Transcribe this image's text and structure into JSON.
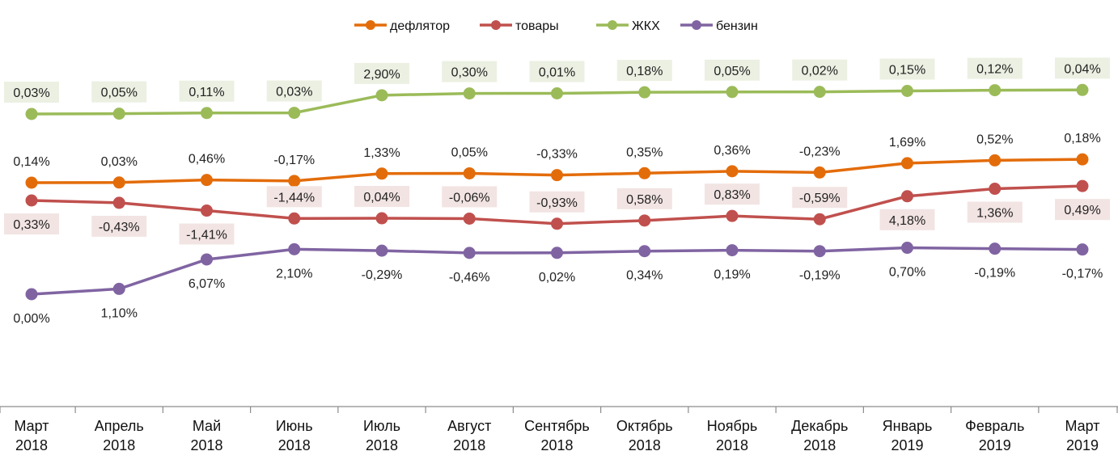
{
  "chart_data": {
    "type": "line",
    "title": "",
    "xlabel": "",
    "ylabel": "",
    "grid": false,
    "legend_position": "top",
    "categories": [
      [
        "Март",
        "2018"
      ],
      [
        "Апрель",
        "2018"
      ],
      [
        "Май",
        "2018"
      ],
      [
        "Июнь",
        "2018"
      ],
      [
        "Июль",
        "2018"
      ],
      [
        "Август",
        "2018"
      ],
      [
        "Сентябрь",
        "2018"
      ],
      [
        "Октябрь",
        "2018"
      ],
      [
        "Ноябрь",
        "2018"
      ],
      [
        "Декабрь",
        "2018"
      ],
      [
        "Январь",
        "2019"
      ],
      [
        "Февраль",
        "2019"
      ],
      [
        "Март",
        "2019"
      ]
    ],
    "series": [
      {
        "name": "дефлятор",
        "color": "#e36c0a",
        "label_bg": "",
        "values": [
          0.14,
          0.03,
          0.46,
          -0.17,
          1.33,
          0.05,
          -0.33,
          0.35,
          0.36,
          -0.23,
          1.69,
          0.52,
          0.18
        ],
        "labels": [
          "0,14%",
          "0,03%",
          "0,46%",
          "-0,17%",
          "1,33%",
          "0,05%",
          "-0,33%",
          "0,35%",
          "0,36%",
          "-0,23%",
          "1,69%",
          "0,52%",
          "0,18%"
        ]
      },
      {
        "name": "товары",
        "color": "#c0504d",
        "label_bg": "#f2e4e3",
        "values": [
          0.33,
          -0.43,
          -1.41,
          -1.44,
          0.04,
          -0.06,
          -0.93,
          0.58,
          0.83,
          -0.59,
          4.18,
          1.36,
          0.49
        ],
        "labels": [
          "0,33%",
          "-0,43%",
          "-1,41%",
          "-1,44%",
          "0,04%",
          "-0,06%",
          "-0,93%",
          "0,58%",
          "0,83%",
          "-0,59%",
          "4,18%",
          "1,36%",
          "0,49%"
        ]
      },
      {
        "name": "ЖКХ",
        "color": "#9bbb59",
        "label_bg": "#ebf0e2",
        "values": [
          0.03,
          0.05,
          0.11,
          0.03,
          2.9,
          0.3,
          0.01,
          0.18,
          0.05,
          0.02,
          0.15,
          0.12,
          0.04
        ],
        "labels": [
          "0,03%",
          "0,05%",
          "0,11%",
          "0,03%",
          "2,90%",
          "0,30%",
          "0,01%",
          "0,18%",
          "0,05%",
          "0,02%",
          "0,15%",
          "0,12%",
          "0,04%"
        ]
      },
      {
        "name": "бензин",
        "color": "#8064a2",
        "label_bg": "",
        "values": [
          0.0,
          1.1,
          6.07,
          2.1,
          -0.29,
          -0.46,
          0.02,
          0.34,
          0.19,
          -0.19,
          0.7,
          -0.19,
          -0.17
        ],
        "labels": [
          "0,00%",
          "1,10%",
          "6,07%",
          "2,10%",
          "-0,29%",
          "-0,46%",
          "0,02%",
          "0,34%",
          "0,19%",
          "-0,19%",
          "0,70%",
          "-0,19%",
          "-0,17%"
        ]
      }
    ]
  }
}
